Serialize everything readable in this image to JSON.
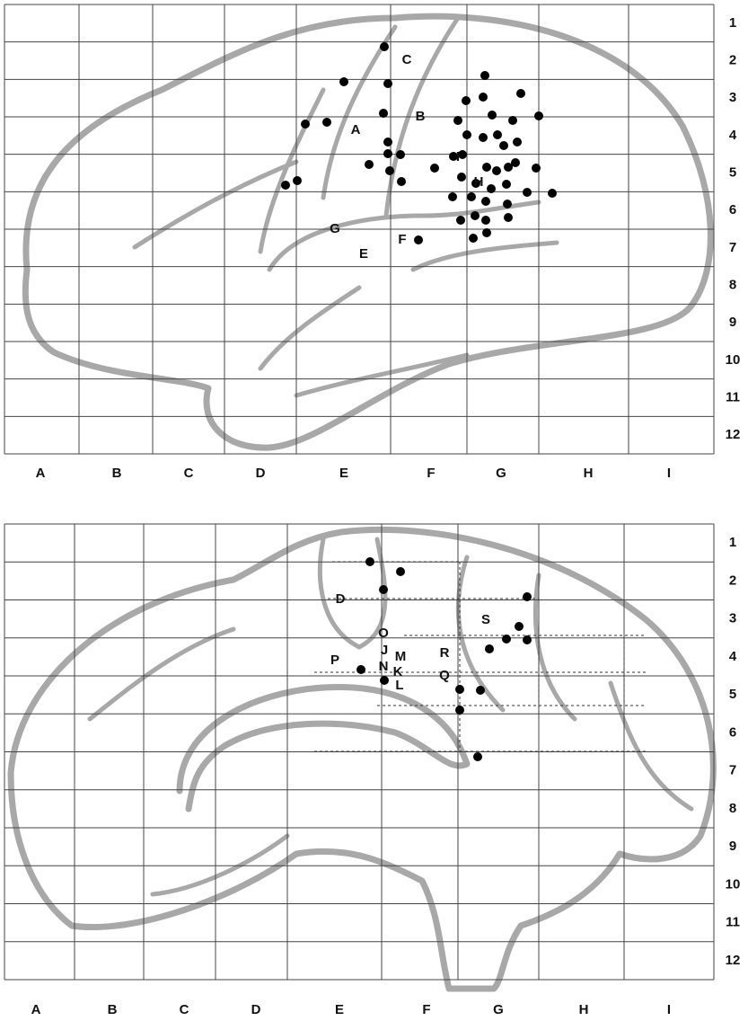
{
  "panels": [
    {
      "columns": [
        "A",
        "B",
        "C",
        "D",
        "E",
        "F",
        "G",
        "H",
        "I"
      ],
      "rows": [
        "1",
        "2",
        "3",
        "4",
        "5",
        "6",
        "7",
        "8",
        "9",
        "10",
        "11",
        "12"
      ],
      "labels": [
        "C",
        "B",
        "A",
        "I",
        "H",
        "G",
        "E",
        "F"
      ]
    },
    {
      "columns": [
        "A",
        "B",
        "C",
        "D",
        "E",
        "F",
        "G",
        "H",
        "I"
      ],
      "rows": [
        "1",
        "2",
        "3",
        "4",
        "5",
        "6",
        "7",
        "8",
        "9",
        "10",
        "11",
        "12"
      ],
      "labels": [
        "D",
        "O",
        "S",
        "P",
        "R",
        "J",
        "M",
        "Q",
        "N",
        "K",
        "L"
      ]
    }
  ]
}
